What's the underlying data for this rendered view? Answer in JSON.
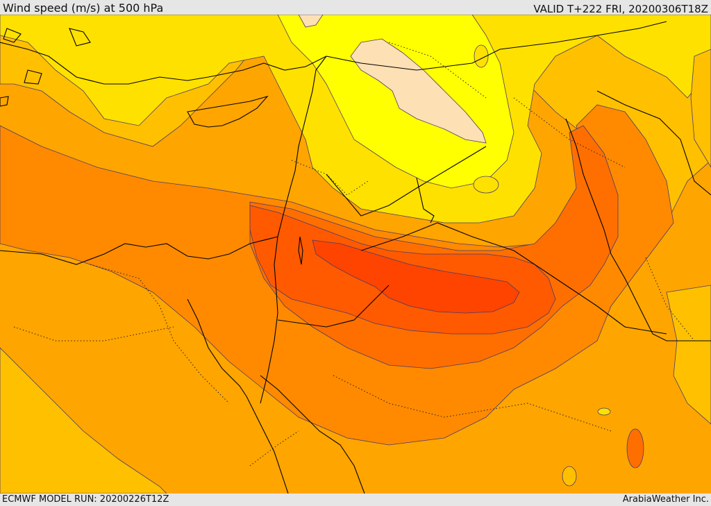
{
  "header": {
    "title": "Wind speed (m/s) at 500 hPa",
    "valid_time": "VALID T+222 FRI, 20200306T18Z"
  },
  "footer": {
    "model_run": "ECMWF MODEL RUN: 20200226T12Z",
    "provider": "ArabiaWeather Inc."
  },
  "map": {
    "palette": {
      "band_lightest": "#fde0b4",
      "band_yellow": "#ffff00",
      "band_gold": "#ffe100",
      "band_amber": "#ffc000",
      "band_orange_light": "#ffa500",
      "band_orange": "#ff8a00",
      "band_orange_deep": "#ff6f00",
      "band_red_orange": "#ff5a00",
      "band_core": "#ff4400",
      "coastline": "#000000",
      "contour": "#4a3a6a"
    }
  }
}
